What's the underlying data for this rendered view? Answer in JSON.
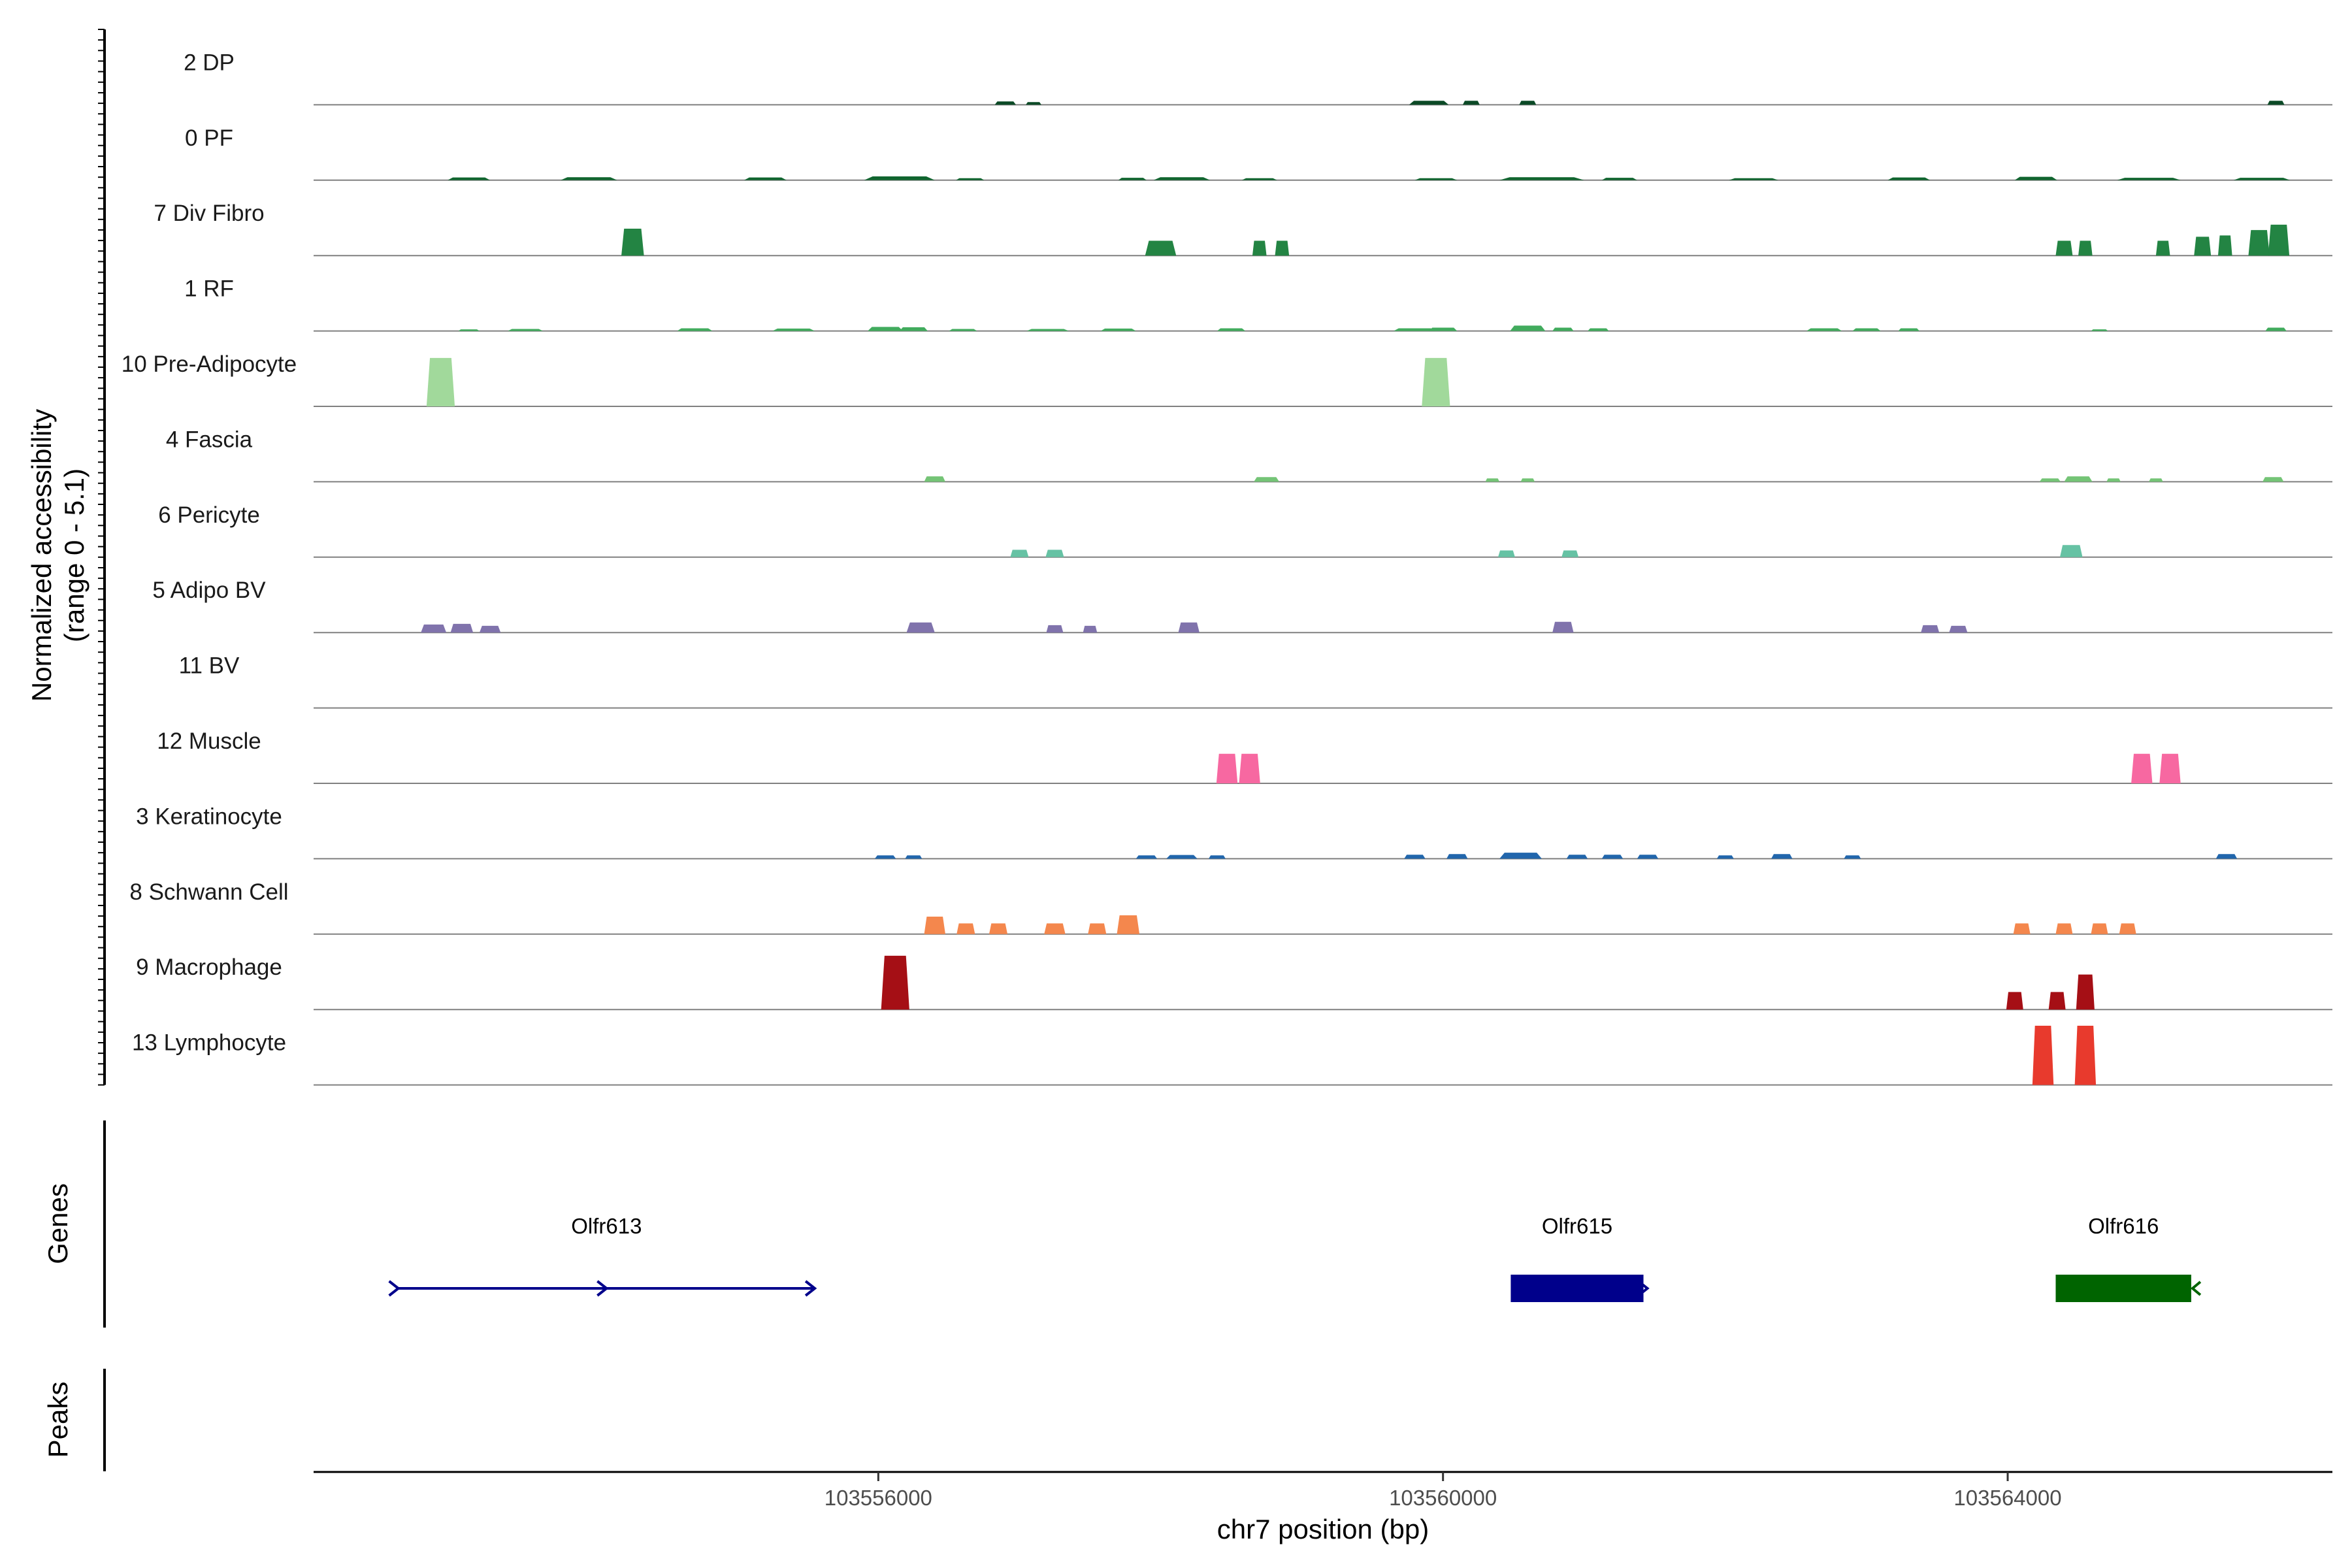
{
  "chart_data": {
    "type": "area",
    "ylabel_line1": "Normalized accessibility",
    "ylabel_line2": "(range 0 - 5.1)",
    "xlabel": "chr7 position (bp)",
    "xlim": [
      103552000,
      103566300
    ],
    "ylim": [
      0,
      5.1
    ],
    "x_ticks": [
      103556000,
      103560000,
      103564000
    ],
    "tracks": [
      {
        "name": "2 DP",
        "color": "#0b4a26",
        "peaks": [
          [
            103556900,
            150,
            0.25
          ],
          [
            103557100,
            110,
            0.2
          ],
          [
            103559900,
            280,
            0.3
          ],
          [
            103560200,
            120,
            0.3
          ],
          [
            103560600,
            120,
            0.3
          ],
          [
            103565900,
            120,
            0.3
          ]
        ]
      },
      {
        "name": "0 PF",
        "color": "#10652f",
        "peaks": [
          [
            103553100,
            300,
            0.2
          ],
          [
            103553950,
            400,
            0.22
          ],
          [
            103555200,
            300,
            0.2
          ],
          [
            103556150,
            500,
            0.28
          ],
          [
            103556650,
            200,
            0.15
          ],
          [
            103557800,
            200,
            0.18
          ],
          [
            103558150,
            400,
            0.22
          ],
          [
            103558700,
            250,
            0.15
          ],
          [
            103559950,
            300,
            0.15
          ],
          [
            103560700,
            600,
            0.22
          ],
          [
            103561250,
            250,
            0.18
          ],
          [
            103562200,
            350,
            0.15
          ],
          [
            103563300,
            300,
            0.2
          ],
          [
            103564200,
            300,
            0.25
          ],
          [
            103565000,
            450,
            0.18
          ],
          [
            103565800,
            400,
            0.18
          ]
        ]
      },
      {
        "name": "7 Div Fibro",
        "color": "#238443",
        "peaks": [
          [
            103554260,
            160,
            2.0
          ],
          [
            103558000,
            220,
            1.1
          ],
          [
            103558700,
            100,
            1.1
          ],
          [
            103558860,
            100,
            1.1
          ],
          [
            103564400,
            120,
            1.1
          ],
          [
            103564550,
            100,
            1.1
          ],
          [
            103565100,
            100,
            1.1
          ],
          [
            103565380,
            120,
            1.4
          ],
          [
            103565540,
            100,
            1.5
          ],
          [
            103565780,
            150,
            1.9
          ],
          [
            103565920,
            150,
            2.3
          ]
        ]
      },
      {
        "name": "1 RF",
        "color": "#41ab5d",
        "peaks": [
          [
            103553100,
            150,
            0.12
          ],
          [
            103553500,
            250,
            0.15
          ],
          [
            103554700,
            250,
            0.2
          ],
          [
            103555400,
            300,
            0.18
          ],
          [
            103556050,
            250,
            0.3
          ],
          [
            103556250,
            200,
            0.28
          ],
          [
            103556600,
            200,
            0.15
          ],
          [
            103557200,
            300,
            0.15
          ],
          [
            103557700,
            250,
            0.18
          ],
          [
            103558500,
            200,
            0.2
          ],
          [
            103559800,
            300,
            0.2
          ],
          [
            103560000,
            200,
            0.25
          ],
          [
            103560600,
            250,
            0.4
          ],
          [
            103560850,
            150,
            0.25
          ],
          [
            103561100,
            150,
            0.2
          ],
          [
            103562700,
            250,
            0.2
          ],
          [
            103563000,
            200,
            0.2
          ],
          [
            103563300,
            150,
            0.2
          ],
          [
            103564650,
            120,
            0.12
          ],
          [
            103565900,
            150,
            0.25
          ]
        ]
      },
      {
        "name": "10 Pre-Adipocyte",
        "color": "#a1d99b",
        "peaks": [
          [
            103552900,
            200,
            3.6
          ],
          [
            103559950,
            200,
            3.6
          ]
        ]
      },
      {
        "name": "4 Fascia",
        "color": "#74c476",
        "peaks": [
          [
            103556400,
            150,
            0.4
          ],
          [
            103558750,
            180,
            0.35
          ],
          [
            103560350,
            100,
            0.25
          ],
          [
            103560600,
            100,
            0.25
          ],
          [
            103564300,
            150,
            0.25
          ],
          [
            103564500,
            200,
            0.4
          ],
          [
            103564750,
            100,
            0.25
          ],
          [
            103565050,
            100,
            0.25
          ],
          [
            103565880,
            150,
            0.35
          ]
        ]
      },
      {
        "name": "6 Pericyte",
        "color": "#66c2a4",
        "peaks": [
          [
            103557000,
            130,
            0.55
          ],
          [
            103557250,
            130,
            0.55
          ],
          [
            103560450,
            120,
            0.5
          ],
          [
            103560900,
            120,
            0.5
          ],
          [
            103564450,
            160,
            0.9
          ]
        ]
      },
      {
        "name": "5 Adipo BV",
        "color": "#8073ac",
        "peaks": [
          [
            103552850,
            180,
            0.6
          ],
          [
            103553050,
            160,
            0.65
          ],
          [
            103553250,
            150,
            0.5
          ],
          [
            103556300,
            200,
            0.75
          ],
          [
            103557250,
            120,
            0.55
          ],
          [
            103557500,
            100,
            0.5
          ],
          [
            103558200,
            150,
            0.75
          ],
          [
            103560850,
            150,
            0.8
          ],
          [
            103563450,
            130,
            0.55
          ],
          [
            103563650,
            130,
            0.5
          ]
        ]
      },
      {
        "name": "11 BV",
        "color": "#6a51a3",
        "peaks": []
      },
      {
        "name": "12 Muscle",
        "color": "#f768a1",
        "peaks": [
          [
            103558470,
            150,
            2.2
          ],
          [
            103558630,
            150,
            2.2
          ],
          [
            103564950,
            150,
            2.2
          ],
          [
            103565150,
            150,
            2.2
          ]
        ]
      },
      {
        "name": "3 Keratinocyte",
        "color": "#2166ac",
        "peaks": [
          [
            103556050,
            150,
            0.25
          ],
          [
            103556250,
            120,
            0.25
          ],
          [
            103557900,
            150,
            0.25
          ],
          [
            103558150,
            220,
            0.28
          ],
          [
            103558400,
            120,
            0.25
          ],
          [
            103559800,
            150,
            0.3
          ],
          [
            103560100,
            150,
            0.35
          ],
          [
            103560550,
            300,
            0.45
          ],
          [
            103560950,
            150,
            0.3
          ],
          [
            103561200,
            150,
            0.3
          ],
          [
            103561450,
            150,
            0.3
          ],
          [
            103562000,
            120,
            0.25
          ],
          [
            103562400,
            150,
            0.35
          ],
          [
            103562900,
            120,
            0.25
          ],
          [
            103565550,
            150,
            0.35
          ]
        ]
      },
      {
        "name": "8 Schwann Cell",
        "color": "#f4874d",
        "peaks": [
          [
            103556400,
            150,
            1.3
          ],
          [
            103556620,
            130,
            0.8
          ],
          [
            103556850,
            130,
            0.8
          ],
          [
            103557250,
            150,
            0.8
          ],
          [
            103557550,
            130,
            0.8
          ],
          [
            103557770,
            160,
            1.4
          ],
          [
            103564100,
            120,
            0.8
          ],
          [
            103564400,
            120,
            0.8
          ],
          [
            103564650,
            120,
            0.8
          ],
          [
            103564850,
            120,
            0.8
          ]
        ]
      },
      {
        "name": "9 Macrophage",
        "color": "#a50f15",
        "peaks": [
          [
            103556120,
            200,
            4.0
          ],
          [
            103564050,
            120,
            1.3
          ],
          [
            103564350,
            120,
            1.3
          ],
          [
            103564550,
            130,
            2.6
          ]
        ]
      },
      {
        "name": "13 Lymphocyte",
        "color": "#e83a2d",
        "peaks": [
          [
            103564250,
            150,
            4.4
          ],
          [
            103564550,
            150,
            4.4
          ]
        ]
      }
    ],
    "genes": [
      {
        "name": "Olfr613",
        "start": 103552600,
        "end": 103555550,
        "strand": "+",
        "color": "#00008b",
        "style": "line"
      },
      {
        "name": "Olfr615",
        "start": 103560480,
        "end": 103561420,
        "strand": "+",
        "color": "#00008b",
        "style": "box"
      },
      {
        "name": "Olfr616",
        "start": 103564340,
        "end": 103565300,
        "strand": "-",
        "color": "#006400",
        "style": "box"
      }
    ],
    "side_titles": {
      "genes": "Genes",
      "peaks": "Peaks"
    }
  }
}
